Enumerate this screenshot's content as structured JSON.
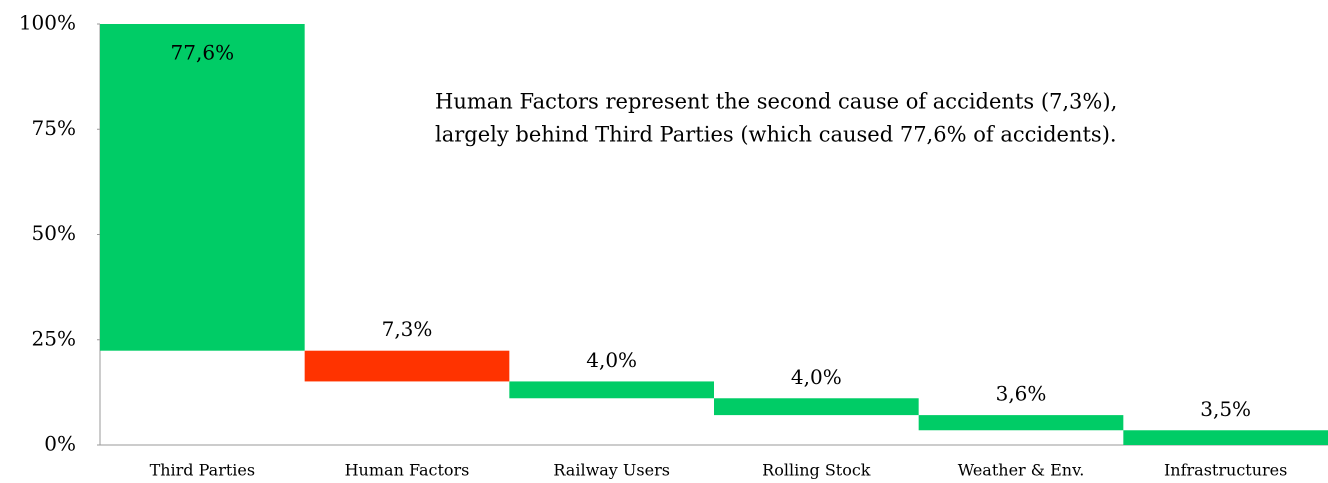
{
  "chart_data": {
    "type": "waterfall",
    "categories": [
      "Third Parties",
      "Human Factors",
      "Railway Users",
      "Rolling Stock",
      "Weather & Env.",
      "Infrastructures"
    ],
    "values": [
      77.6,
      7.3,
      4.0,
      4.0,
      3.6,
      3.5
    ],
    "value_labels": [
      "77,6%",
      "7,3%",
      "4,0%",
      "4,0%",
      "3,6%",
      "3,5%"
    ],
    "colors": [
      "#00cc66",
      "#ff3300",
      "#00cc66",
      "#00cc66",
      "#00cc66",
      "#00cc66"
    ],
    "ylim": [
      0,
      100
    ],
    "yticks": [
      {
        "value": 0,
        "label": "0%"
      },
      {
        "value": 25,
        "label": "25%"
      },
      {
        "value": 50,
        "label": "50%"
      },
      {
        "value": 75,
        "label": "75%"
      },
      {
        "value": 100,
        "label": "100%"
      }
    ],
    "annotation": [
      "Human Factors represent the second cause of accidents (7,3%),",
      "largely behind Third Parties (which caused 77,6% of accidents)."
    ]
  }
}
